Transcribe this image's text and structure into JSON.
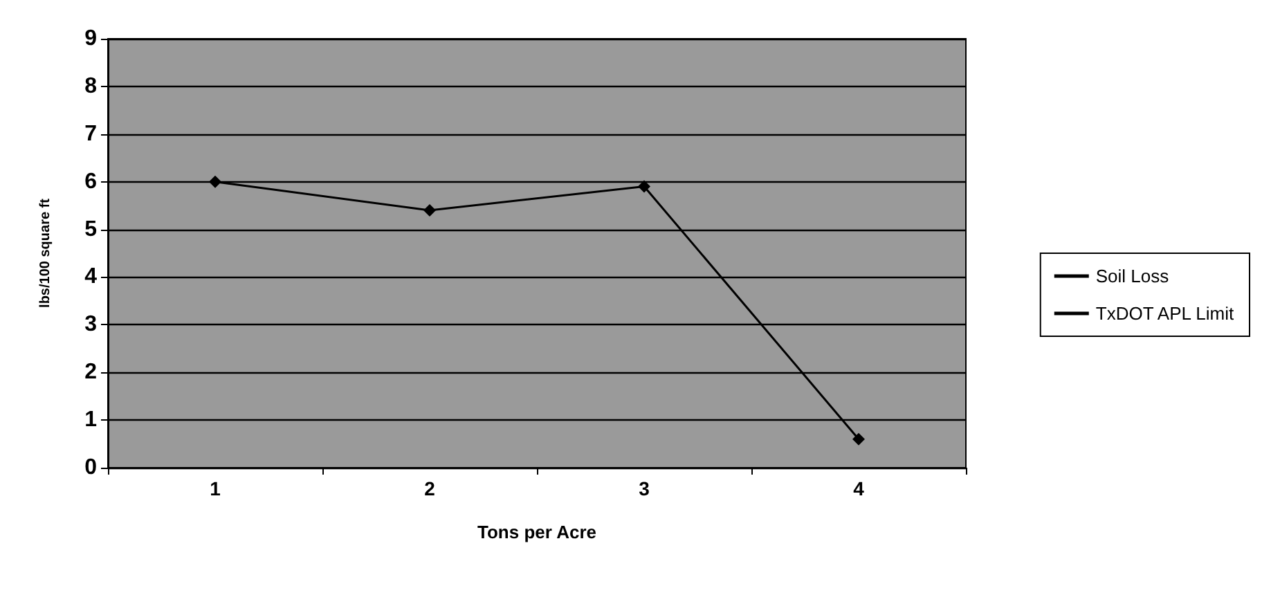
{
  "chart_data": {
    "type": "line",
    "xlabel": "Tons per Acre",
    "ylabel": "lbs/100 square ft",
    "categories": [
      "1",
      "2",
      "3",
      "4"
    ],
    "series": [
      {
        "name": "Soil Loss",
        "color": "#000000",
        "values": [
          6.0,
          5.4,
          5.9,
          0.6
        ],
        "marker": "diamond"
      },
      {
        "name": "TxDOT APL Limit",
        "color": "#000000",
        "values": [
          null,
          null,
          null,
          null
        ],
        "marker": "none"
      }
    ],
    "ylim": [
      0,
      9
    ],
    "yticks": [
      0,
      1,
      2,
      3,
      4,
      5,
      6,
      7,
      8,
      9
    ],
    "grid": "y",
    "legend": "right"
  }
}
